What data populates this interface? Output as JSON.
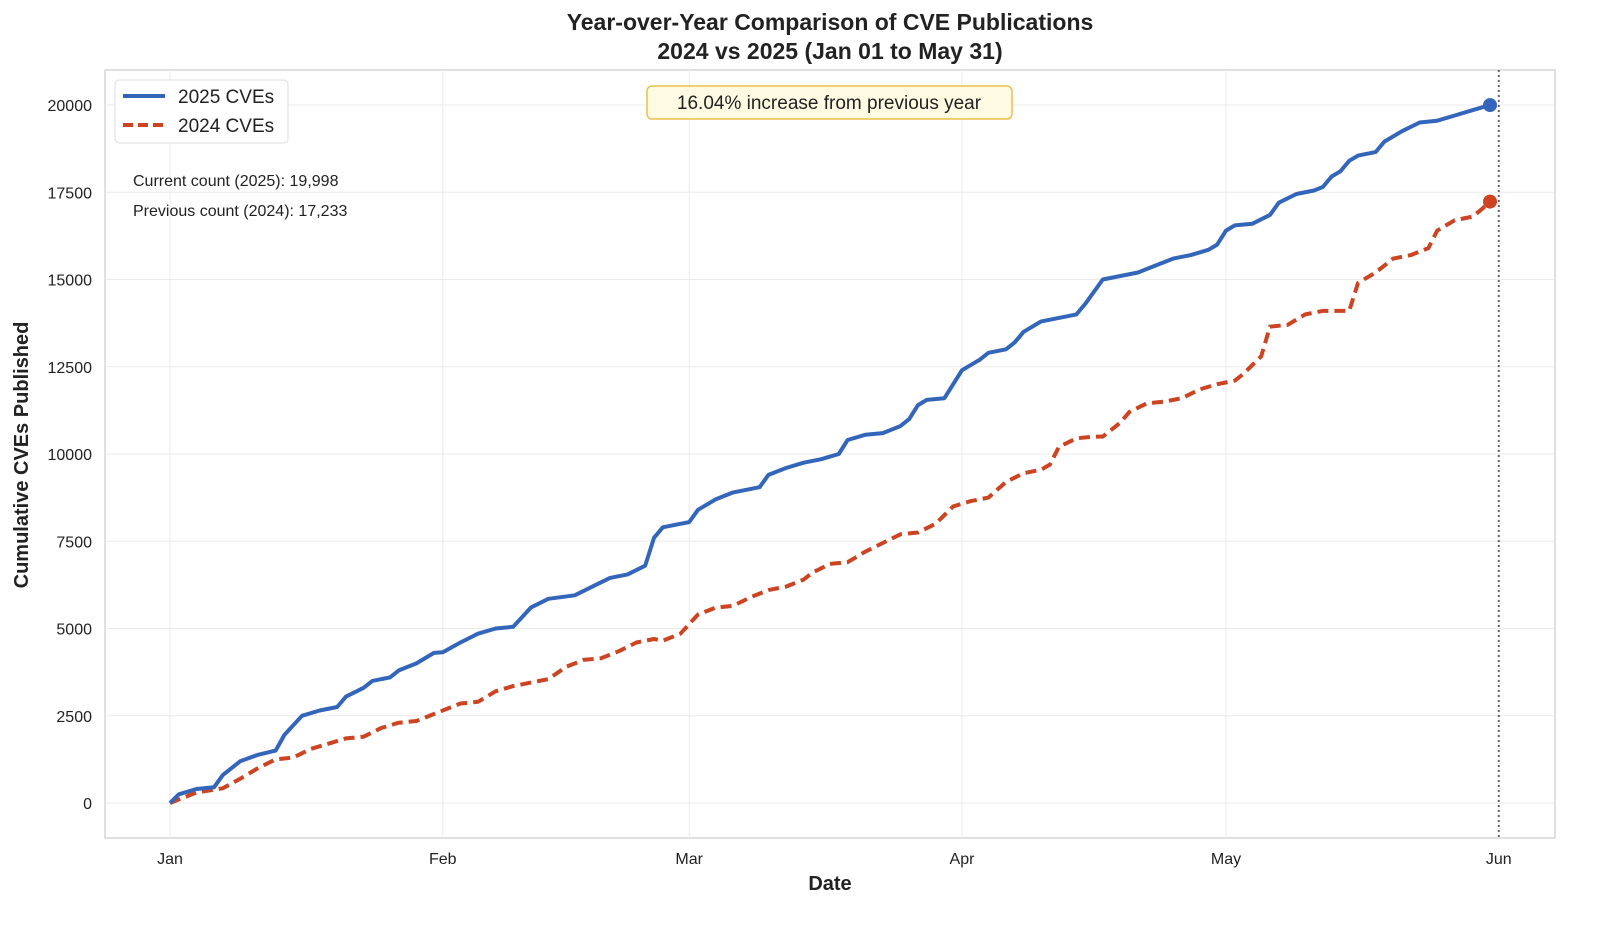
{
  "chart_data": {
    "type": "line",
    "title": "Year-over-Year Comparison of CVE Publications",
    "subtitle": "2024 vs 2025 (Jan 01 to May 31)",
    "xlabel": "Date",
    "ylabel": "Cumulative CVEs Published",
    "ylim": [
      -1000,
      21000
    ],
    "yticks": [
      0,
      2500,
      5000,
      7500,
      10000,
      12500,
      15000,
      17500,
      20000
    ],
    "xticks": [
      {
        "date": "01-01",
        "label": "Jan"
      },
      {
        "date": "02-01",
        "label": "Feb"
      },
      {
        "date": "03-01",
        "label": "Mar"
      },
      {
        "date": "04-01",
        "label": "Apr"
      },
      {
        "date": "05-01",
        "label": "May"
      },
      {
        "date": "06-01",
        "label": "Jun"
      }
    ],
    "grid": true,
    "legend_position": "top-left",
    "reference_line_date": "06-01",
    "annotation": "16.04% increase from previous year",
    "stats": [
      "Current count (2025): 19,998",
      "Previous count (2024): 17,233"
    ],
    "series": [
      {
        "name": "2025 CVEs",
        "color": "#3366bb",
        "style": "solid",
        "end_value": 19998,
        "points": [
          [
            "01-01",
            0
          ],
          [
            "01-02",
            250
          ],
          [
            "01-04",
            400
          ],
          [
            "01-06",
            450
          ],
          [
            "01-07",
            800
          ],
          [
            "01-09",
            1200
          ],
          [
            "01-11",
            1380
          ],
          [
            "01-13",
            1500
          ],
          [
            "01-14",
            1950
          ],
          [
            "01-16",
            2500
          ],
          [
            "01-18",
            2650
          ],
          [
            "01-20",
            2750
          ],
          [
            "01-21",
            3050
          ],
          [
            "01-23",
            3300
          ],
          [
            "01-24",
            3500
          ],
          [
            "01-26",
            3600
          ],
          [
            "01-27",
            3800
          ],
          [
            "01-29",
            4000
          ],
          [
            "01-31",
            4300
          ],
          [
            "02-01",
            4320
          ],
          [
            "02-03",
            4600
          ],
          [
            "02-05",
            4850
          ],
          [
            "02-07",
            5000
          ],
          [
            "02-09",
            5050
          ],
          [
            "02-11",
            5600
          ],
          [
            "02-13",
            5850
          ],
          [
            "02-16",
            5950
          ],
          [
            "02-18",
            6200
          ],
          [
            "02-20",
            6450
          ],
          [
            "02-22",
            6550
          ],
          [
            "02-24",
            6800
          ],
          [
            "02-25",
            7600
          ],
          [
            "02-26",
            7900
          ],
          [
            "02-28",
            8000
          ],
          [
            "03-01",
            8050
          ],
          [
            "03-02",
            8400
          ],
          [
            "03-04",
            8700
          ],
          [
            "03-06",
            8900
          ],
          [
            "03-08",
            9000
          ],
          [
            "03-09",
            9050
          ],
          [
            "03-10",
            9400
          ],
          [
            "03-12",
            9600
          ],
          [
            "03-14",
            9750
          ],
          [
            "03-16",
            9850
          ],
          [
            "03-18",
            10000
          ],
          [
            "03-19",
            10400
          ],
          [
            "03-21",
            10550
          ],
          [
            "03-23",
            10600
          ],
          [
            "03-25",
            10800
          ],
          [
            "03-26",
            11000
          ],
          [
            "03-27",
            11400
          ],
          [
            "03-28",
            11550
          ],
          [
            "03-30",
            11600
          ],
          [
            "04-01",
            12400
          ],
          [
            "04-03",
            12700
          ],
          [
            "04-04",
            12900
          ],
          [
            "04-06",
            13000
          ],
          [
            "04-07",
            13200
          ],
          [
            "04-08",
            13500
          ],
          [
            "04-10",
            13800
          ],
          [
            "04-12",
            13900
          ],
          [
            "04-14",
            14000
          ],
          [
            "04-15",
            14300
          ],
          [
            "04-17",
            15000
          ],
          [
            "04-19",
            15100
          ],
          [
            "04-21",
            15200
          ],
          [
            "04-23",
            15400
          ],
          [
            "04-25",
            15600
          ],
          [
            "04-27",
            15700
          ],
          [
            "04-29",
            15850
          ],
          [
            "04-30",
            16000
          ],
          [
            "05-01",
            16400
          ],
          [
            "05-02",
            16550
          ],
          [
            "05-04",
            16600
          ],
          [
            "05-06",
            16850
          ],
          [
            "05-07",
            17200
          ],
          [
            "05-09",
            17450
          ],
          [
            "05-11",
            17550
          ],
          [
            "05-12",
            17650
          ],
          [
            "05-13",
            17950
          ],
          [
            "05-14",
            18100
          ],
          [
            "05-15",
            18400
          ],
          [
            "05-16",
            18550
          ],
          [
            "05-18",
            18650
          ],
          [
            "05-19",
            18950
          ],
          [
            "05-21",
            19250
          ],
          [
            "05-23",
            19500
          ],
          [
            "05-25",
            19550
          ],
          [
            "05-27",
            19700
          ],
          [
            "05-29",
            19850
          ],
          [
            "05-31",
            19998
          ]
        ]
      },
      {
        "name": "2024 CVEs",
        "color": "#cc4422",
        "style": "dashed",
        "end_value": 17233,
        "points": [
          [
            "01-01",
            0
          ],
          [
            "01-04",
            300
          ],
          [
            "01-06",
            380
          ],
          [
            "01-07",
            420
          ],
          [
            "01-09",
            700
          ],
          [
            "01-11",
            1000
          ],
          [
            "01-13",
            1250
          ],
          [
            "01-15",
            1300
          ],
          [
            "01-17",
            1550
          ],
          [
            "01-19",
            1700
          ],
          [
            "01-21",
            1850
          ],
          [
            "01-23",
            1900
          ],
          [
            "01-25",
            2150
          ],
          [
            "01-27",
            2300
          ],
          [
            "01-29",
            2350
          ],
          [
            "01-31",
            2550
          ],
          [
            "02-02",
            2750
          ],
          [
            "02-03",
            2850
          ],
          [
            "02-05",
            2900
          ],
          [
            "02-07",
            3200
          ],
          [
            "02-09",
            3350
          ],
          [
            "02-11",
            3450
          ],
          [
            "02-13",
            3550
          ],
          [
            "02-15",
            3900
          ],
          [
            "02-17",
            4100
          ],
          [
            "02-19",
            4150
          ],
          [
            "02-21",
            4350
          ],
          [
            "02-23",
            4600
          ],
          [
            "02-25",
            4700
          ],
          [
            "02-26",
            4650
          ],
          [
            "02-28",
            4850
          ],
          [
            "03-02",
            5400
          ],
          [
            "03-04",
            5600
          ],
          [
            "03-06",
            5650
          ],
          [
            "03-08",
            5900
          ],
          [
            "03-10",
            6100
          ],
          [
            "03-12",
            6200
          ],
          [
            "03-14",
            6400
          ],
          [
            "03-15",
            6600
          ],
          [
            "03-17",
            6850
          ],
          [
            "03-19",
            6900
          ],
          [
            "03-21",
            7200
          ],
          [
            "03-23",
            7450
          ],
          [
            "03-25",
            7700
          ],
          [
            "03-27",
            7750
          ],
          [
            "03-29",
            8000
          ],
          [
            "03-31",
            8500
          ],
          [
            "04-02",
            8650
          ],
          [
            "04-04",
            8750
          ],
          [
            "04-06",
            9200
          ],
          [
            "04-08",
            9450
          ],
          [
            "04-10",
            9550
          ],
          [
            "04-11",
            9700
          ],
          [
            "04-12",
            10200
          ],
          [
            "04-14",
            10450
          ],
          [
            "04-16",
            10500
          ],
          [
            "04-17",
            10500
          ],
          [
            "04-19",
            10900
          ],
          [
            "04-20",
            11200
          ],
          [
            "04-22",
            11450
          ],
          [
            "04-24",
            11500
          ],
          [
            "04-26",
            11600
          ],
          [
            "04-28",
            11850
          ],
          [
            "04-30",
            12000
          ],
          [
            "05-02",
            12100
          ],
          [
            "05-03",
            12300
          ],
          [
            "05-05",
            12800
          ],
          [
            "05-06",
            13650
          ],
          [
            "05-08",
            13700
          ],
          [
            "05-10",
            14000
          ],
          [
            "05-12",
            14100
          ],
          [
            "05-14",
            14100
          ],
          [
            "05-15",
            14100
          ],
          [
            "05-16",
            14900
          ],
          [
            "05-18",
            15200
          ],
          [
            "05-20",
            15600
          ],
          [
            "05-22",
            15700
          ],
          [
            "05-24",
            15900
          ],
          [
            "05-25",
            16400
          ],
          [
            "05-27",
            16700
          ],
          [
            "05-29",
            16800
          ],
          [
            "05-30",
            17000
          ],
          [
            "05-31",
            17233
          ]
        ]
      }
    ]
  }
}
